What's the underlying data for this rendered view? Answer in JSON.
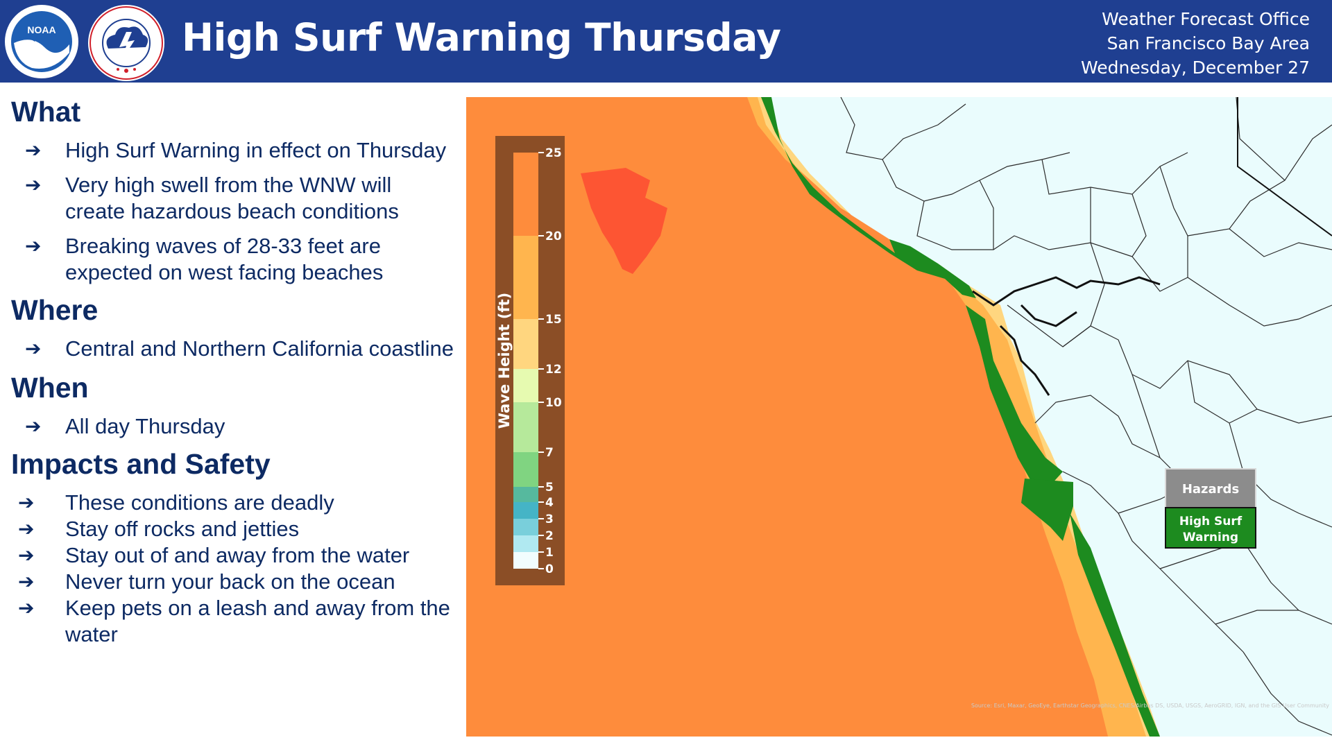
{
  "header": {
    "title": "High Surf Warning Thursday",
    "office_lines": [
      "Weather Forecast Office",
      "San Francisco Bay Area",
      "Wednesday, December 27"
    ],
    "noaa_logo": {
      "name": "noaa-logo",
      "center_text": "NOAA",
      "ring_text": "NATIONAL OCEANIC AND ATMOSPHERIC ADMINISTRATION • U.S. DEPARTMENT OF COMMERCE"
    },
    "nws_logo": {
      "name": "nws-logo",
      "ring_text": "NATIONAL WEATHER SERVICE"
    },
    "colors": {
      "banner": "#1f3f91",
      "text": "#ffffff"
    }
  },
  "sections": [
    {
      "heading": "What",
      "items": [
        "High Surf Warning in effect on Thursday",
        "Very high swell from the WNW will create hazardous beach conditions",
        "Breaking waves of 28-33 feet are expected on west facing beaches"
      ]
    },
    {
      "heading": "Where",
      "items": [
        "Central and Northern California coastline"
      ]
    },
    {
      "heading": "When",
      "items": [
        "All day Thursday"
      ]
    },
    {
      "heading": "Impacts and Safety",
      "items": [
        "These conditions are deadly",
        "Stay off rocks and jetties",
        "Stay out of and away from the water",
        "Never turn your back on the ocean",
        "Keep pets on a leash and away from the water"
      ]
    }
  ],
  "bullet_icon": "right-arrow-icon",
  "map": {
    "legend": {
      "title": "Wave Height (ft)",
      "ticks": [
        "25",
        "20",
        "15",
        "12",
        "10",
        "7",
        "5",
        "4",
        "3",
        "2",
        "1",
        "0"
      ],
      "bins": [
        {
          "from": 20,
          "to": 25,
          "color": "#fe8c3c"
        },
        {
          "from": 15,
          "to": 20,
          "color": "#ffb54e"
        },
        {
          "from": 12,
          "to": 15,
          "color": "#ffd67f"
        },
        {
          "from": 10,
          "to": 12,
          "color": "#e6fab0"
        },
        {
          "from": 7,
          "to": 10,
          "color": "#b6e99b"
        },
        {
          "from": 5,
          "to": 7,
          "color": "#80d481"
        },
        {
          "from": 4,
          "to": 5,
          "color": "#56b99e"
        },
        {
          "from": 3,
          "to": 4,
          "color": "#45b4c6"
        },
        {
          "from": 2,
          "to": 3,
          "color": "#79cfdb"
        },
        {
          "from": 1,
          "to": 2,
          "color": "#b0e9f1"
        },
        {
          "from": 0,
          "to": 1,
          "color": "#f2fdfe"
        }
      ],
      "frame_color": "#8b4e26"
    },
    "hazards_box": {
      "title": "Hazards",
      "label_lines": [
        "High Surf",
        "Warning"
      ],
      "color": "#1d8b1f"
    },
    "attribution": "Source: Esri, Maxar, GeoEye, Earthstar Geographics, CNES/Airbus DS, USDA, USGS, AeroGRID, IGN, and the GIS User Community",
    "colors": {
      "ocean": "#fe8c3c",
      "hotspot": "#fd5533",
      "nearshore": "#ffb54e",
      "land": "#eafcfd",
      "warning": "#1d8b1f"
    }
  }
}
